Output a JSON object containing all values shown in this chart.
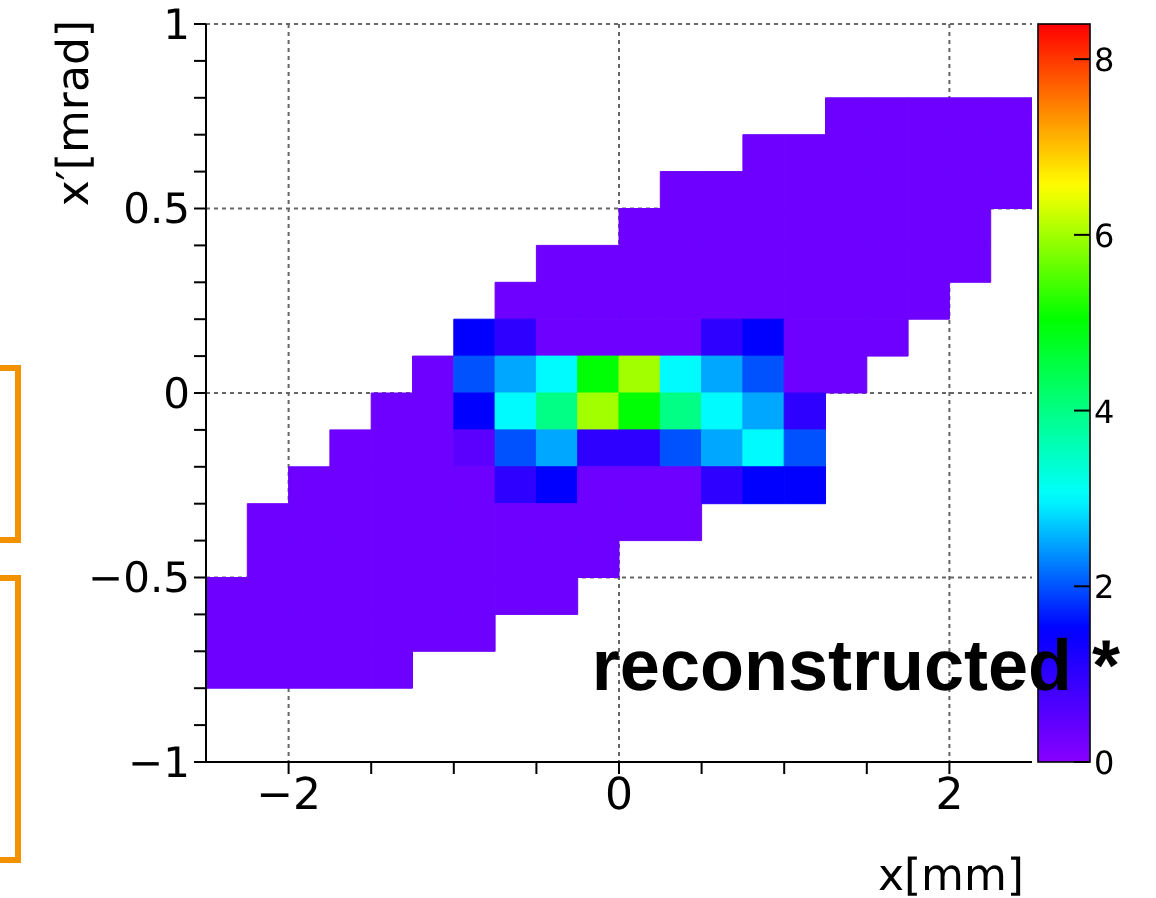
{
  "chart_data": {
    "type": "heatmap",
    "xlabel": "x[mm]",
    "ylabel": "x′[mrad]",
    "annotations": [
      "reconstructed *"
    ],
    "x": [
      -2.375,
      -2.125,
      -1.875,
      -1.625,
      -1.375,
      -1.125,
      -0.875,
      -0.625,
      -0.375,
      -0.125,
      0.125,
      0.375,
      0.625,
      0.875,
      1.125,
      1.375,
      1.625,
      1.875,
      2.125,
      2.375
    ],
    "y": [
      0.75,
      0.65,
      0.55,
      0.45,
      0.35,
      0.25,
      0.15,
      0.05,
      -0.05,
      -0.15,
      -0.25,
      -0.35,
      -0.45,
      -0.55,
      -0.65,
      -0.75
    ],
    "xlim": [
      -2.5,
      2.5
    ],
    "ylim": [
      -1,
      1
    ],
    "xticks": [
      {
        "value": -2,
        "label": "−2"
      },
      {
        "value": -1.5,
        "label": null
      },
      {
        "value": -1,
        "label": null
      },
      {
        "value": -0.5,
        "label": null
      },
      0,
      {
        "value": 0.5,
        "label": null
      },
      {
        "value": 1,
        "label": null
      },
      {
        "value": 1.5,
        "label": null
      },
      2
    ],
    "yticks": [
      {
        "value": -1,
        "label": "−1"
      },
      {
        "value": -0.9,
        "label": null
      },
      {
        "value": -0.8,
        "label": null
      },
      {
        "value": -0.7,
        "label": null
      },
      {
        "value": -0.6,
        "label": null
      },
      {
        "value": -0.5,
        "label": "−0.5"
      },
      {
        "value": -0.4,
        "label": null
      },
      {
        "value": -0.3,
        "label": null
      },
      {
        "value": -0.2,
        "label": null
      },
      {
        "value": -0.1,
        "label": null
      },
      0,
      {
        "value": 0.1,
        "label": null
      },
      {
        "value": 0.2,
        "label": null
      },
      {
        "value": 0.3,
        "label": null
      },
      {
        "value": 0.4,
        "label": null
      },
      0.5,
      {
        "value": 0.6,
        "label": null
      },
      {
        "value": 0.7,
        "label": null
      },
      {
        "value": 0.8,
        "label": null
      },
      {
        "value": 0.9,
        "label": null
      },
      1
    ],
    "clim": [
      0,
      8.4
    ],
    "cticks": [
      0,
      2,
      4,
      6,
      8
    ],
    "grid": true,
    "cells": [
      [
        null,
        null,
        null,
        null,
        null,
        null,
        null,
        null,
        null,
        null,
        null,
        null,
        null,
        null,
        null,
        0.3,
        0.3,
        0.3,
        0.3,
        0.3
      ],
      [
        null,
        null,
        null,
        null,
        null,
        null,
        null,
        null,
        null,
        null,
        null,
        null,
        null,
        0.3,
        0.3,
        0.3,
        0.3,
        0.3,
        0.3,
        0.3
      ],
      [
        null,
        null,
        null,
        null,
        null,
        null,
        null,
        null,
        null,
        null,
        null,
        0.3,
        0.3,
        0.3,
        0.3,
        0.3,
        0.3,
        0.3,
        0.3,
        0.3
      ],
      [
        null,
        null,
        null,
        null,
        null,
        null,
        null,
        null,
        null,
        null,
        0.3,
        0.3,
        0.3,
        0.3,
        0.3,
        0.3,
        0.3,
        0.3,
        0.3,
        null
      ],
      [
        null,
        null,
        null,
        null,
        null,
        null,
        null,
        null,
        0.3,
        0.3,
        0.3,
        0.3,
        0.3,
        0.3,
        0.3,
        0.3,
        0.3,
        0.3,
        0.3,
        null
      ],
      [
        null,
        null,
        null,
        null,
        null,
        null,
        null,
        0.3,
        0.3,
        0.3,
        0.3,
        0.3,
        0.3,
        0.3,
        0.3,
        0.3,
        0.3,
        0.3,
        null,
        null
      ],
      [
        null,
        null,
        null,
        null,
        null,
        null,
        1.5,
        1,
        0.3,
        0.3,
        0.3,
        0.3,
        1,
        1.5,
        0.3,
        0.3,
        0.3,
        null,
        null,
        null
      ],
      [
        null,
        null,
        null,
        null,
        null,
        0.3,
        2,
        2.5,
        3,
        5,
        6,
        3,
        2.5,
        2,
        0.3,
        0.3,
        null,
        null,
        null,
        null
      ],
      [
        null,
        null,
        null,
        null,
        0.3,
        0.3,
        1.5,
        3,
        4,
        6,
        5,
        4,
        3,
        2.5,
        1,
        null,
        null,
        null,
        null,
        null
      ],
      [
        null,
        null,
        null,
        0.3,
        0.3,
        0.3,
        0.5,
        2,
        2.5,
        1,
        1,
        2,
        2.5,
        3,
        2,
        null,
        null,
        null,
        null,
        null
      ],
      [
        null,
        null,
        0.3,
        0.3,
        0.3,
        0.3,
        0.3,
        1,
        1.5,
        0.3,
        0.3,
        0.3,
        1,
        1.5,
        1.5,
        null,
        null,
        null,
        null,
        null
      ],
      [
        null,
        0.3,
        0.3,
        0.3,
        0.3,
        0.3,
        0.3,
        0.3,
        0.3,
        0.3,
        0.3,
        0.3,
        null,
        null,
        null,
        null,
        null,
        null,
        null,
        null
      ],
      [
        null,
        0.3,
        0.3,
        0.3,
        0.3,
        0.3,
        0.3,
        0.3,
        0.3,
        0.3,
        null,
        null,
        null,
        null,
        null,
        null,
        null,
        null,
        null,
        null
      ],
      [
        0.3,
        0.3,
        0.3,
        0.3,
        0.3,
        0.3,
        0.3,
        0.3,
        0.3,
        null,
        null,
        null,
        null,
        null,
        null,
        null,
        null,
        null,
        null,
        null
      ],
      [
        0.3,
        0.3,
        0.3,
        0.3,
        0.3,
        0.3,
        0.3,
        null,
        null,
        null,
        null,
        null,
        null,
        null,
        null,
        null,
        null,
        null,
        null,
        null
      ],
      [
        0.3,
        0.3,
        0.3,
        0.3,
        0.3,
        null,
        null,
        null,
        null,
        null,
        null,
        null,
        null,
        null,
        null,
        null,
        null,
        null,
        null,
        null
      ]
    ]
  }
}
